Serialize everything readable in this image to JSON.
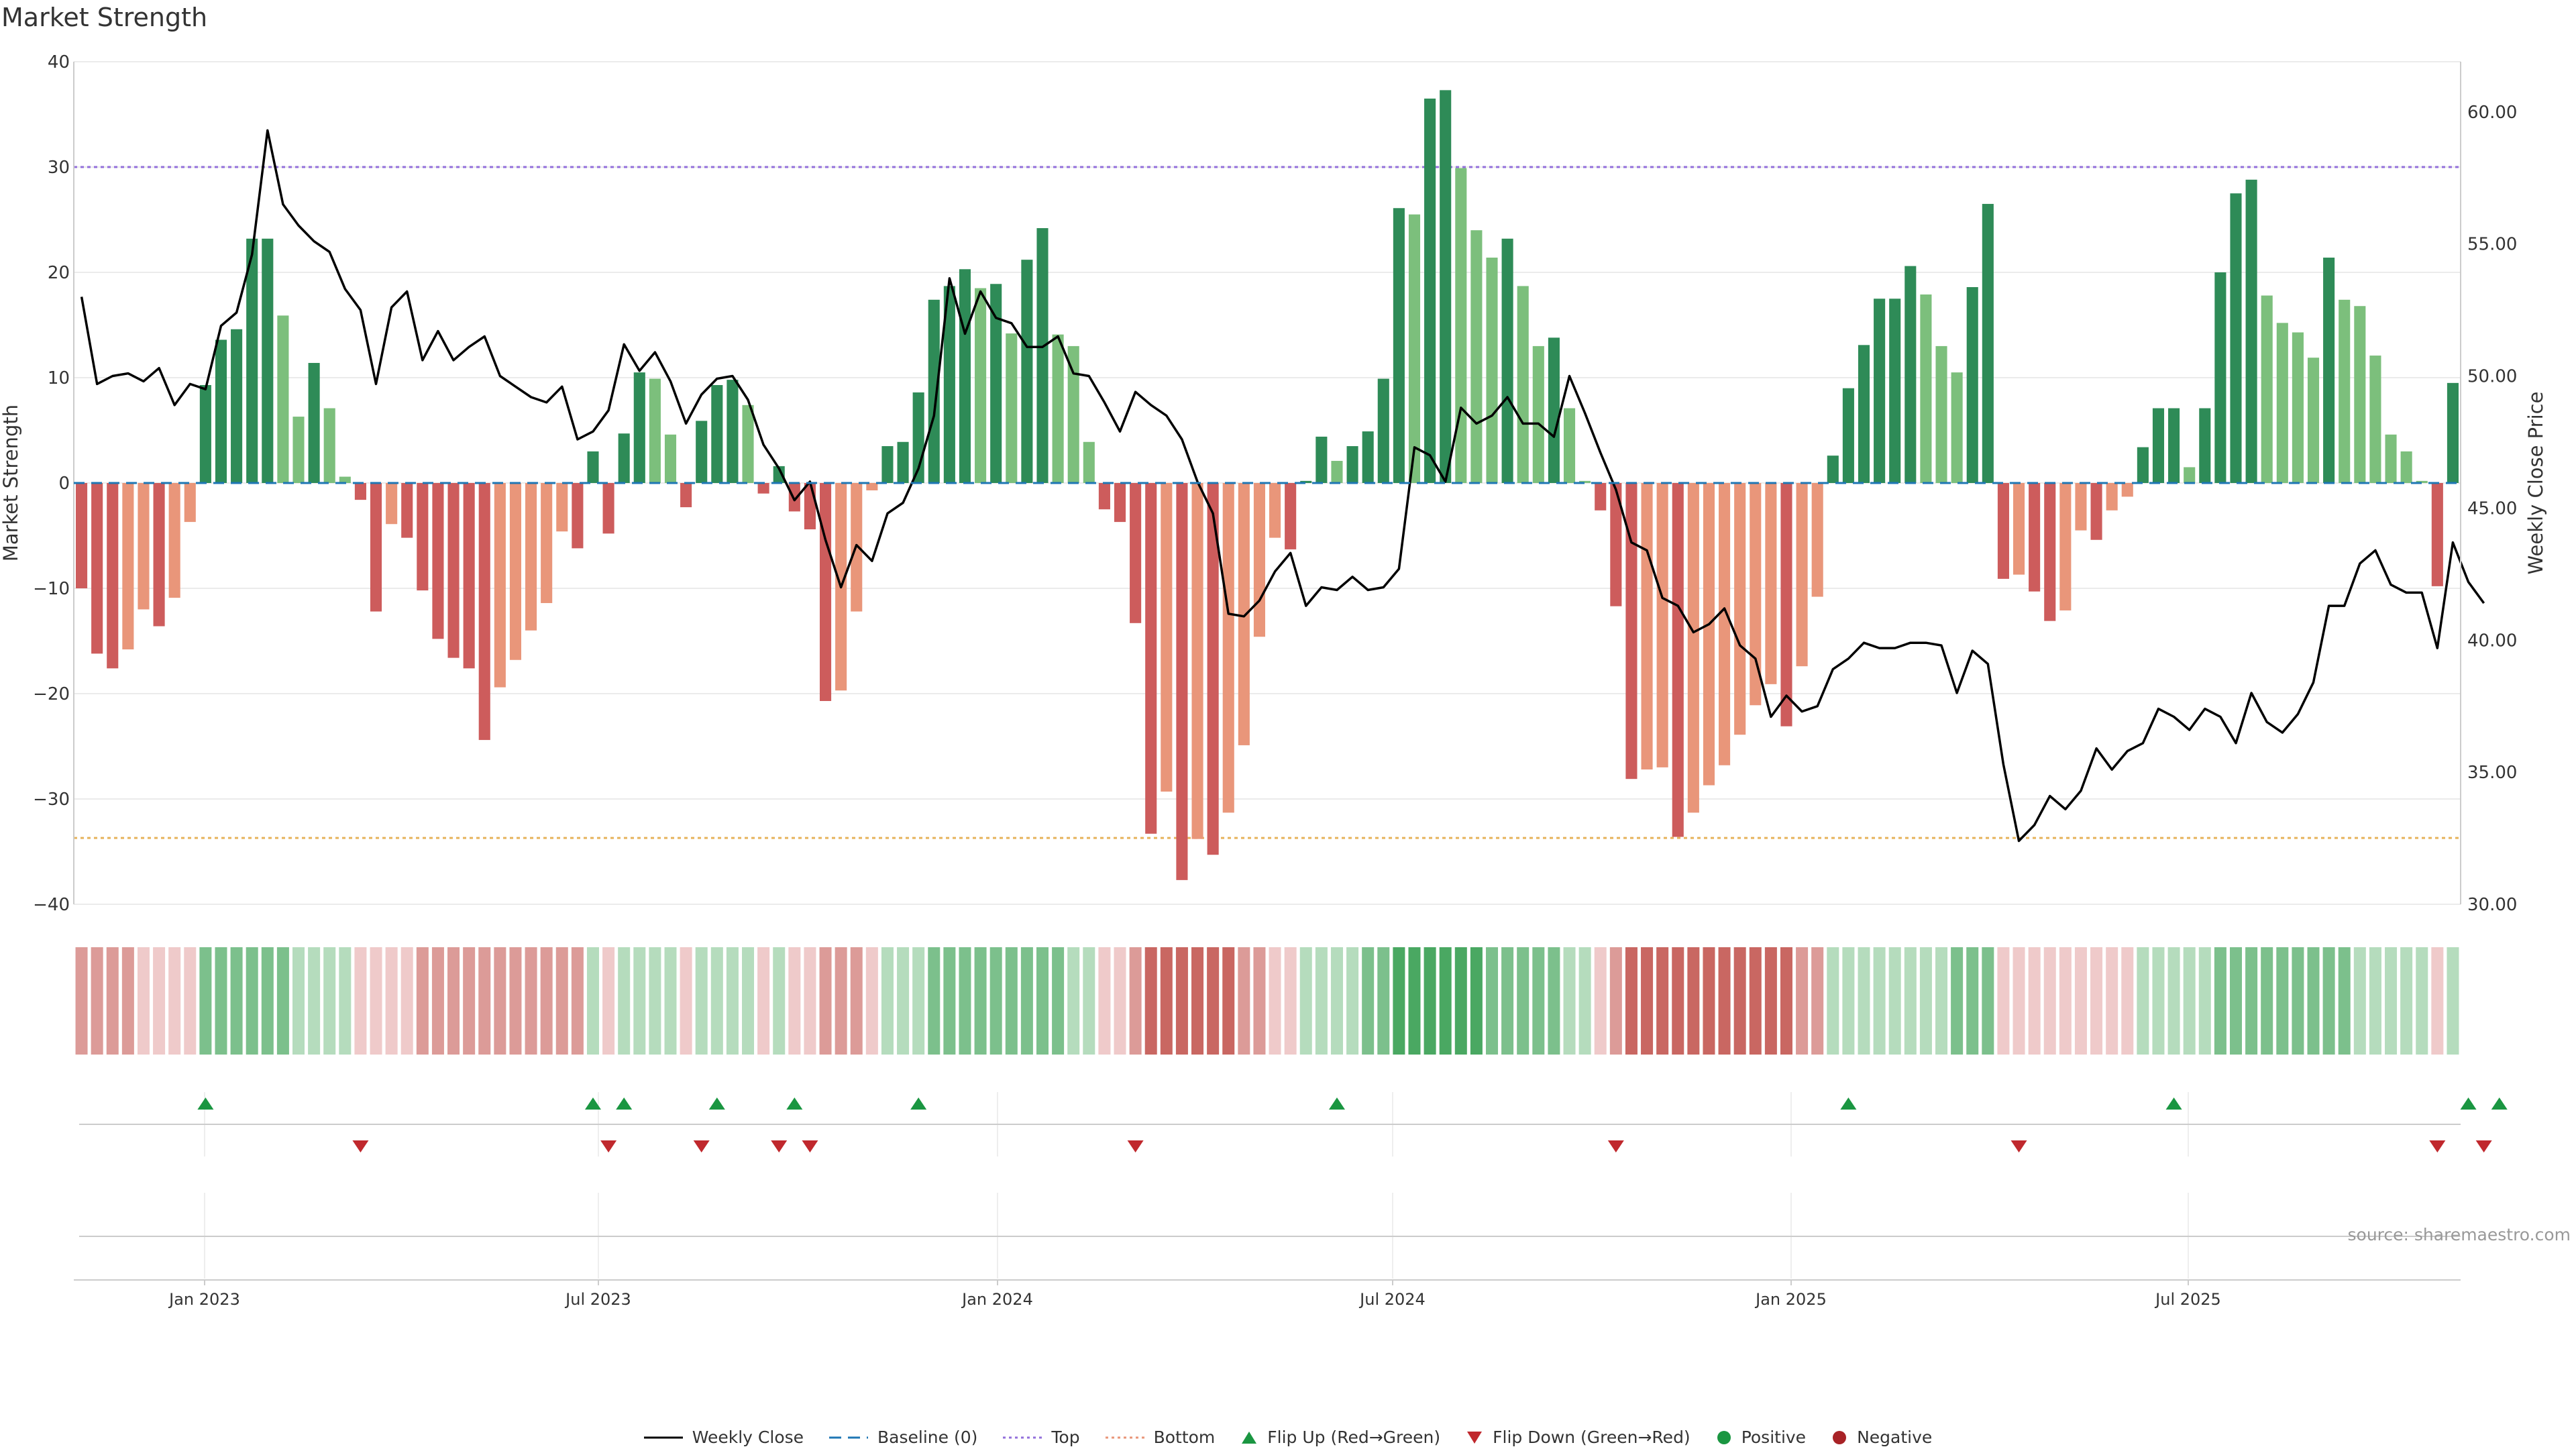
{
  "title": "Market Strength",
  "source": "source: sharemaestro.com",
  "colors": {
    "dark_green": "#2e8b57",
    "light_green": "#7cbf7c",
    "dark_red": "#cd5c5c",
    "light_red": "#e9967a",
    "top_line": "#9370db",
    "bottom_line": "#e6b35c",
    "baseline": "#1f77b4",
    "price": "#000000",
    "flip_up": "#1a9641",
    "flip_down": "#c0282d"
  },
  "chart_data": {
    "type": "bar",
    "title": "Market Strength",
    "ylabel": "Market Strength",
    "y2label": "Weekly Close Price",
    "ylim": [
      -40,
      40
    ],
    "y2lim": [
      30,
      61.9
    ],
    "yticks": [
      "40",
      "30",
      "20",
      "10",
      "0",
      "−10",
      "−20",
      "−30",
      "−40"
    ],
    "y2ticks": [
      "60.00",
      "55.00",
      "50.00",
      "45.00",
      "40.00",
      "35.00",
      "30.00"
    ],
    "xticks": [
      "Jan 2023",
      "Jul 2023",
      "Jan 2024",
      "Jul 2024",
      "Jan 2025",
      "Jul 2025"
    ],
    "top_level": 30,
    "bottom_level": -33.7,
    "strength": [
      -10.0,
      -16.2,
      -17.6,
      -15.8,
      -12.0,
      -13.6,
      -10.9,
      -3.7,
      9.3,
      13.6,
      14.6,
      23.2,
      23.2,
      15.9,
      6.3,
      11.4,
      7.1,
      0.6,
      -1.6,
      -12.2,
      -3.9,
      -5.2,
      -10.2,
      -14.8,
      -16.6,
      -17.6,
      -24.4,
      -19.4,
      -16.8,
      -14.0,
      -11.4,
      -4.6,
      -6.2,
      3.0,
      -4.8,
      4.7,
      10.5,
      9.9,
      4.6,
      -2.3,
      5.9,
      9.3,
      9.8,
      7.4,
      -1.0,
      1.6,
      -2.7,
      -4.4,
      -20.7,
      -19.7,
      -12.2,
      -0.7,
      3.5,
      3.9,
      8.6,
      17.4,
      18.7,
      20.3,
      18.5,
      18.9,
      14.2,
      21.2,
      24.2,
      14.1,
      13.0,
      3.9,
      -2.5,
      -3.7,
      -13.3,
      -33.3,
      -29.3,
      -37.7,
      -33.8,
      -35.3,
      -31.3,
      -24.9,
      -14.6,
      -5.2,
      -6.3,
      0.2,
      4.4,
      2.1,
      3.5,
      4.9,
      9.9,
      26.1,
      25.5,
      36.5,
      37.3,
      29.9,
      24.0,
      21.4,
      23.2,
      18.7,
      13.0,
      13.8,
      7.1,
      0.2,
      -2.6,
      -11.7,
      -28.1,
      -27.2,
      -27.0,
      -33.6,
      -31.3,
      -28.7,
      -26.8,
      -23.9,
      -21.1,
      -19.1,
      -23.1,
      -17.4,
      -10.8,
      2.6,
      9.0,
      13.1,
      17.5,
      17.5,
      20.6,
      17.9,
      13.0,
      10.5,
      18.6,
      26.5,
      -9.1,
      -8.7,
      -10.3,
      -13.1,
      -12.1,
      -4.5,
      -5.4,
      -2.6,
      -1.3,
      3.4,
      7.1,
      7.1,
      1.5,
      7.1,
      20.0,
      27.5,
      28.8,
      17.8,
      15.2,
      14.3,
      11.9,
      21.4,
      17.4,
      16.8,
      12.1,
      4.6,
      3.0,
      0.2,
      -9.8,
      9.5
    ],
    "price": [
      53.0,
      49.7,
      50.0,
      50.1,
      49.8,
      50.3,
      48.9,
      49.7,
      49.5,
      51.9,
      52.4,
      54.6,
      59.3,
      56.5,
      55.7,
      55.1,
      54.7,
      53.3,
      52.5,
      49.7,
      52.6,
      53.2,
      50.6,
      51.7,
      50.6,
      51.1,
      51.5,
      50.0,
      49.6,
      49.2,
      49.0,
      49.6,
      47.6,
      47.9,
      48.7,
      51.2,
      50.2,
      50.9,
      49.8,
      48.2,
      49.3,
      49.9,
      50.0,
      49.1,
      47.4,
      46.5,
      45.3,
      46.0,
      43.8,
      42.0,
      43.6,
      43.0,
      44.8,
      45.2,
      46.5,
      48.5,
      53.7,
      51.6,
      53.2,
      52.2,
      52.0,
      51.1,
      51.1,
      51.5,
      50.1,
      50.0,
      49.0,
      47.9,
      49.4,
      48.9,
      48.5,
      47.6,
      46.0,
      44.8,
      41.0,
      40.9,
      41.5,
      42.6,
      43.3,
      41.3,
      42.0,
      41.9,
      42.4,
      41.9,
      42.0,
      42.7,
      47.3,
      47.0,
      46.0,
      48.8,
      48.2,
      48.5,
      49.2,
      48.2,
      48.2,
      47.7,
      50.0,
      48.6,
      47.1,
      45.7,
      43.7,
      43.4,
      41.6,
      41.3,
      40.3,
      40.6,
      41.2,
      39.8,
      39.3,
      37.1,
      37.9,
      37.3,
      37.5,
      38.9,
      39.3,
      39.9,
      39.7,
      39.7,
      39.9,
      39.9,
      39.8,
      38.0,
      39.6,
      39.1,
      35.3,
      32.4,
      33.0,
      34.1,
      33.6,
      34.3,
      35.9,
      35.1,
      35.8,
      36.1,
      37.4,
      37.1,
      36.6,
      37.4,
      37.1,
      36.1,
      38.0,
      36.9,
      36.5,
      37.2,
      38.4,
      41.3,
      41.3,
      42.9,
      43.4,
      42.1,
      41.8,
      41.8,
      39.7,
      43.7,
      42.2,
      41.4
    ],
    "heat": [
      -2,
      -2,
      -2,
      -2,
      -1,
      -1,
      -1,
      -1,
      2,
      2,
      2,
      2,
      2,
      2,
      1,
      1,
      1,
      1,
      -1,
      -1,
      -1,
      -1,
      -2,
      -2,
      -2,
      -2,
      -2,
      -2,
      -2,
      -2,
      -2,
      -2,
      -2,
      1,
      -1,
      1,
      1,
      1,
      1,
      -1,
      1,
      1,
      1,
      1,
      -1,
      1,
      -1,
      -1,
      -2,
      -2,
      -2,
      -1,
      1,
      1,
      1,
      2,
      2,
      2,
      2,
      2,
      2,
      2,
      2,
      2,
      1,
      1,
      -1,
      -1,
      -2,
      -3,
      -3,
      -3,
      -3,
      -3,
      -3,
      -2,
      -2,
      -1,
      -1,
      1,
      1,
      1,
      1,
      2,
      2,
      3,
      3,
      3,
      3,
      3,
      3,
      2,
      2,
      2,
      2,
      2,
      1,
      1,
      -1,
      -2,
      -3,
      -3,
      -3,
      -3,
      -3,
      -3,
      -3,
      -3,
      -3,
      -3,
      -3,
      -2,
      -2,
      1,
      1,
      1,
      1,
      1,
      1,
      1,
      1,
      2,
      2,
      2,
      -1,
      -1,
      -1,
      -1,
      -1,
      -1,
      -1,
      -1,
      -1,
      1,
      1,
      1,
      1,
      1,
      2,
      2,
      2,
      2,
      2,
      2,
      2,
      2,
      2,
      1,
      1,
      1,
      1,
      1,
      -1,
      1
    ],
    "flip_up_weeks": [
      8,
      33,
      35,
      41,
      46,
      54,
      81,
      114,
      135,
      154,
      156
    ],
    "flip_down_weeks": [
      18,
      34,
      40,
      45,
      47,
      68,
      99,
      125,
      152,
      155
    ]
  },
  "legend": [
    {
      "label": "Weekly Close",
      "icon": "solid-line"
    },
    {
      "label": "Baseline (0)",
      "icon": "dashed-line"
    },
    {
      "label": "Top",
      "icon": "dotted-line-purple"
    },
    {
      "label": "Bottom",
      "icon": "dotted-line-orange"
    },
    {
      "label": "Flip Up (Red→Green)",
      "icon": "triangle-up"
    },
    {
      "label": "Flip Down (Green→Red)",
      "icon": "triangle-down"
    },
    {
      "label": "Positive",
      "icon": "circle-green"
    },
    {
      "label": "Negative",
      "icon": "circle-red"
    }
  ]
}
